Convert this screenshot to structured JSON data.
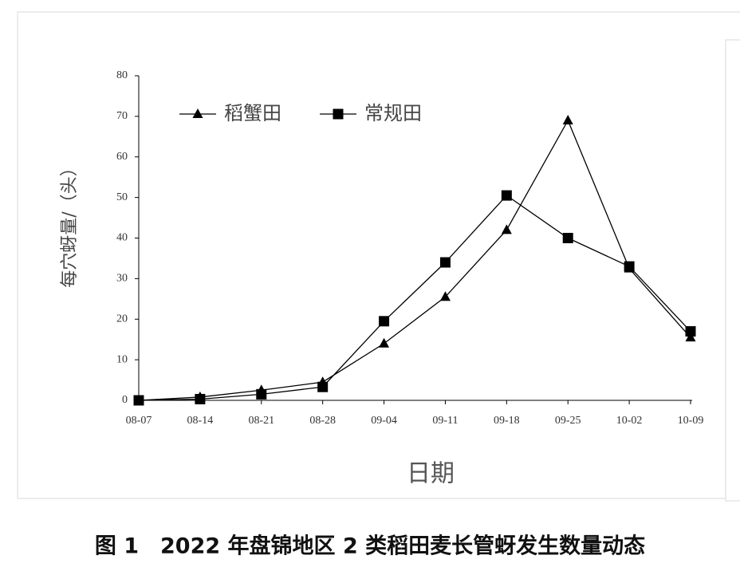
{
  "chart_data": {
    "type": "line",
    "ylabel": "每穴蚜量/（头）",
    "xlabel": "日期",
    "categories": [
      "08-07",
      "08-14",
      "08-21",
      "08-28",
      "09-04",
      "09-11",
      "09-18",
      "09-25",
      "10-02",
      "10-09"
    ],
    "series": [
      {
        "name": "稻蟹田",
        "color": "#000000",
        "marker": "triangle",
        "values": [
          0,
          0.8,
          2.5,
          4.5,
          14,
          25.5,
          42,
          69,
          32.5,
          15.5
        ]
      },
      {
        "name": "常规田",
        "color": "#000000",
        "marker": "square",
        "values": [
          0,
          0.3,
          1.5,
          3.3,
          19.5,
          34,
          50.5,
          40,
          33,
          17
        ]
      }
    ],
    "ylim": [
      0,
      80
    ],
    "yticks": [
      0,
      10,
      20,
      30,
      40,
      50,
      60,
      70,
      80
    ],
    "legend": "upper left",
    "grid": false
  },
  "caption": "图 1　2022 年盘锦地区 2 类稻田麦长管蚜发生数量动态"
}
